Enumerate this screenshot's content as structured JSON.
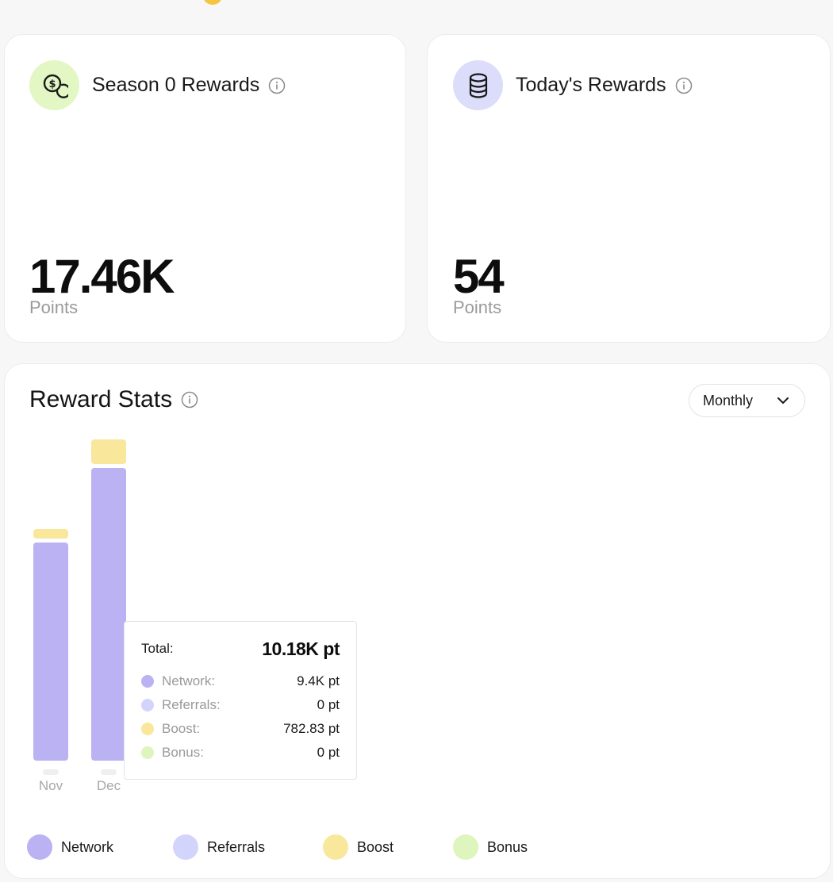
{
  "season_card": {
    "title": "Season 0 Rewards",
    "value": "17.46K",
    "unit": "Points",
    "icon": "coin-dollar-icon"
  },
  "today_card": {
    "title": "Today's Rewards",
    "value": "54",
    "unit": "Points",
    "icon": "coin-stack-icon"
  },
  "stats": {
    "title": "Reward Stats",
    "period": {
      "selected": "Monthly"
    }
  },
  "tooltip": {
    "total_label": "Total:",
    "total_value": "10.18K pt",
    "rows": [
      {
        "label": "Network:",
        "value": "9.4K pt"
      },
      {
        "label": "Referrals:",
        "value": "0 pt"
      },
      {
        "label": "Boost:",
        "value": "782.83 pt"
      },
      {
        "label": "Bonus:",
        "value": "0 pt"
      }
    ]
  },
  "legend": [
    {
      "label": "Network"
    },
    {
      "label": "Referrals"
    },
    {
      "label": "Boost"
    },
    {
      "label": "Bonus"
    }
  ],
  "colors": {
    "network": "#bab2f3",
    "referrals": "#d3d4fb",
    "boost": "#f9e79b",
    "bonus": "#def5bd"
  },
  "chart_data": {
    "type": "bar",
    "stacked": true,
    "categories": [
      "Nov",
      "Dec"
    ],
    "series": [
      {
        "name": "Network",
        "values": [
          7.0,
          9.4
        ]
      },
      {
        "name": "Referrals",
        "values": [
          0,
          0
        ]
      },
      {
        "name": "Boost",
        "values": [
          0.29,
          0.78283
        ]
      },
      {
        "name": "Bonus",
        "values": [
          0,
          0
        ]
      }
    ],
    "legend_position": "bottom-left",
    "grid": false
  }
}
